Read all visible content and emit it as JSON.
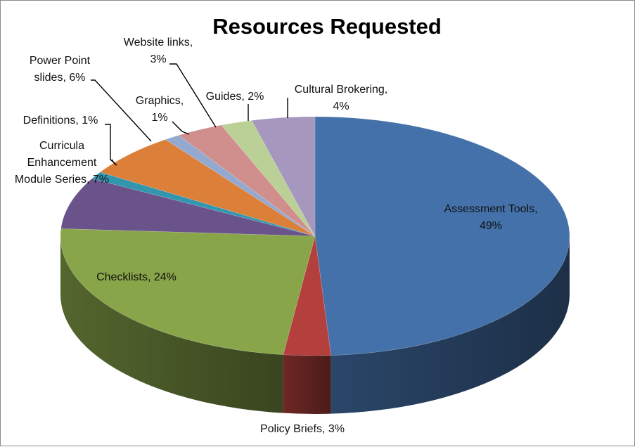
{
  "chart_data": {
    "type": "pie",
    "style": "3d",
    "title": "Resources Requested",
    "slices": [
      {
        "label": "Assessment Tools",
        "pct_label": "49%",
        "value": 49,
        "color": "#4471A9"
      },
      {
        "label": "Policy Briefs",
        "pct_label": "3%",
        "value": 3,
        "color": "#B3403C"
      },
      {
        "label": "Checklists",
        "pct_label": "24%",
        "value": 24,
        "color": "#88A54A"
      },
      {
        "label": "Curricula Enhancement Module Series",
        "pct_label": "7%",
        "value": 7,
        "color": "#6A538A"
      },
      {
        "label": "Definitions",
        "pct_label": "1%",
        "value": 1,
        "color": "#3296AF"
      },
      {
        "label": "Power Point slides",
        "pct_label": "6%",
        "value": 6,
        "color": "#DC7F38"
      },
      {
        "label": "Graphics",
        "pct_label": "1%",
        "value": 1,
        "color": "#93A9CF"
      },
      {
        "label": "Website links",
        "pct_label": "3%",
        "value": 3,
        "color": "#D08F8C"
      },
      {
        "label": "Guides",
        "pct_label": "2%",
        "value": 2,
        "color": "#BBD097"
      },
      {
        "label": "Cultural Brokering",
        "pct_label": "4%",
        "value": 4,
        "color": "#A597BE"
      }
    ],
    "labels": [
      {
        "lines": [
          "Assessment Tools,",
          "49%"
        ]
      },
      {
        "lines": [
          "Policy Briefs, 3%"
        ]
      },
      {
        "lines": [
          "Checklists, 24%"
        ]
      },
      {
        "lines": [
          "Curricula",
          "Enhancement",
          "Module Series, 7%"
        ]
      },
      {
        "lines": [
          "Definitions, 1%"
        ]
      },
      {
        "lines": [
          "Power Point",
          "slides, 6%"
        ]
      },
      {
        "lines": [
          "Graphics,",
          "1%"
        ]
      },
      {
        "lines": [
          "Website links,",
          "3%"
        ]
      },
      {
        "lines": [
          "Guides, 2%"
        ]
      },
      {
        "lines": [
          "Cultural Brokering,",
          "4%"
        ]
      }
    ]
  }
}
